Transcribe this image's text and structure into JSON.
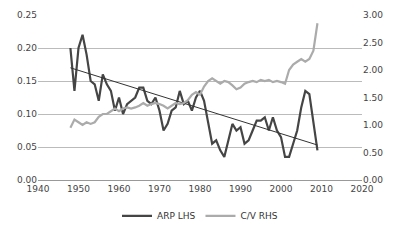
{
  "chart_data": {
    "type": "line",
    "x": [
      1948,
      1949,
      1950,
      1951,
      1952,
      1953,
      1954,
      1955,
      1956,
      1957,
      1958,
      1959,
      1960,
      1961,
      1962,
      1963,
      1964,
      1965,
      1966,
      1967,
      1968,
      1969,
      1970,
      1971,
      1972,
      1973,
      1974,
      1975,
      1976,
      1977,
      1978,
      1979,
      1980,
      1981,
      1982,
      1983,
      1984,
      1985,
      1986,
      1987,
      1988,
      1989,
      1990,
      1991,
      1992,
      1993,
      1994,
      1995,
      1996,
      1997,
      1998,
      1999,
      2000,
      2001,
      2002,
      2003,
      2004,
      2005,
      2006,
      2007,
      2008,
      2009
    ],
    "series": [
      {
        "name": "ARP LHS",
        "color": "#454545",
        "line_style": "solid",
        "values": [
          0.2,
          0.135,
          0.2,
          0.22,
          0.19,
          0.15,
          0.145,
          0.12,
          0.16,
          0.145,
          0.135,
          0.105,
          0.125,
          0.1,
          0.115,
          0.12,
          0.125,
          0.14,
          0.14,
          0.12,
          0.115,
          0.125,
          0.105,
          0.075,
          0.085,
          0.105,
          0.11,
          0.135,
          0.115,
          0.12,
          0.105,
          0.125,
          0.135,
          0.12,
          0.09,
          0.055,
          0.06,
          0.045,
          0.035,
          0.06,
          0.085,
          0.075,
          0.08,
          0.055,
          0.06,
          0.075,
          0.09,
          0.09,
          0.095,
          0.075,
          0.095,
          0.075,
          0.065,
          0.035,
          0.035,
          0.055,
          0.075,
          0.11,
          0.135,
          0.13,
          0.09,
          0.045
        ]
      },
      {
        "name": "C/V RHS",
        "color": "#ababab",
        "line_style": "solid",
        "axis": "y2",
        "values": [
          0.95,
          1.1,
          1.05,
          1.0,
          1.05,
          1.02,
          1.05,
          1.15,
          1.2,
          1.2,
          1.25,
          1.3,
          1.25,
          1.3,
          1.32,
          1.3,
          1.32,
          1.35,
          1.4,
          1.35,
          1.38,
          1.4,
          1.38,
          1.35,
          1.3,
          1.35,
          1.4,
          1.38,
          1.4,
          1.45,
          1.55,
          1.6,
          1.55,
          1.7,
          1.8,
          1.85,
          1.8,
          1.75,
          1.8,
          1.78,
          1.72,
          1.65,
          1.68,
          1.75,
          1.78,
          1.8,
          1.78,
          1.82,
          1.8,
          1.82,
          1.78,
          1.8,
          1.78,
          1.75,
          2.0,
          2.1,
          2.15,
          2.2,
          2.15,
          2.2,
          2.35,
          2.85
        ]
      },
      {
        "color": "#333333",
        "line_style": "thin",
        "x": [
          1948,
          2009
        ],
        "values": [
          0.17,
          0.053
        ]
      }
    ],
    "xlim": [
      1940,
      2020
    ],
    "xticks": [
      1940,
      1950,
      1960,
      1970,
      1980,
      1990,
      2000,
      2010,
      2020
    ],
    "ylim": [
      0,
      0.25
    ],
    "yticks": [
      {
        "value": 0,
        "label": "0.00"
      },
      {
        "value": 0.05,
        "label": "0.05"
      },
      {
        "value": 0.1,
        "label": "0.10"
      },
      {
        "value": 0.15,
        "label": "0.15"
      },
      {
        "value": 0.2,
        "label": "0.20"
      },
      {
        "value": 0.25,
        "label": "0.25"
      }
    ],
    "y2lim": [
      0,
      3
    ],
    "y2ticks": [
      {
        "value": 0,
        "label": "0.00"
      },
      {
        "value": 0.5,
        "label": "0.50"
      },
      {
        "value": 1,
        "label": "1.00"
      },
      {
        "value": 1.5,
        "label": "1.50"
      },
      {
        "value": 2,
        "label": "2.00"
      },
      {
        "value": 2.5,
        "label": "2.50"
      },
      {
        "value": 3,
        "label": "3.00"
      }
    ],
    "grid": true,
    "legend": "bottom"
  }
}
